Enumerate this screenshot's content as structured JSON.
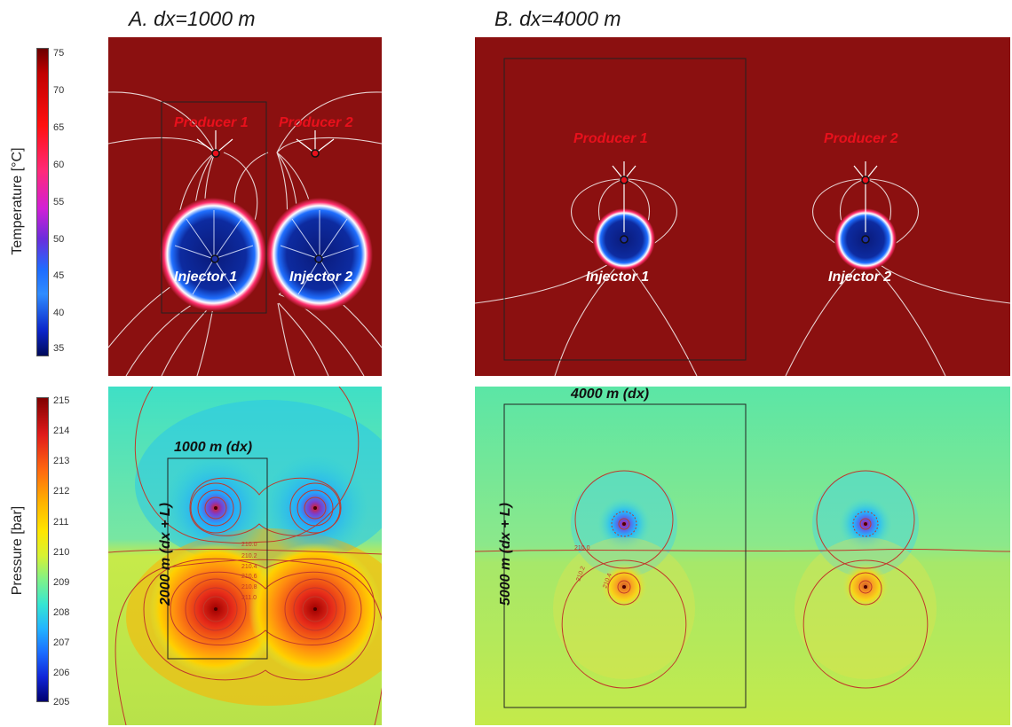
{
  "panel_titles": {
    "a": "A. dx=1000 m",
    "b": "B. dx=4000 m"
  },
  "temperature_colorbar": {
    "label": "Temperature [°C]",
    "ticks": [
      "75",
      "70",
      "65",
      "60",
      "55",
      "50",
      "45",
      "40",
      "35"
    ]
  },
  "pressure_colorbar": {
    "label": "Pressure [bar]",
    "ticks": [
      "215",
      "214",
      "213",
      "212",
      "211",
      "210",
      "209",
      "208",
      "207",
      "206",
      "205"
    ]
  },
  "wells": {
    "producer_1": "Producer 1",
    "producer_2": "Producer 2",
    "injector_1": "Injector 1",
    "injector_2": "Injector 2"
  },
  "dimensions": {
    "a_dx": "1000 m (dx)",
    "a_dx_l": "2000 m (dx + L)",
    "b_dx": "4000 m (dx)",
    "b_dx_l": "5000 m (dx + L)"
  },
  "contour_labels_a": [
    "210.0",
    "210.2",
    "210.4",
    "210.6",
    "210.8",
    "211.0"
  ],
  "contour_labels_b": [
    "210.0",
    "210.2",
    "210.4"
  ],
  "colors": {
    "hot": "#8b1010",
    "cold_core": "#0a1a7a",
    "producer_text": "#e8101c",
    "injector_text": "#ffffff",
    "contour": "#c0392b"
  }
}
